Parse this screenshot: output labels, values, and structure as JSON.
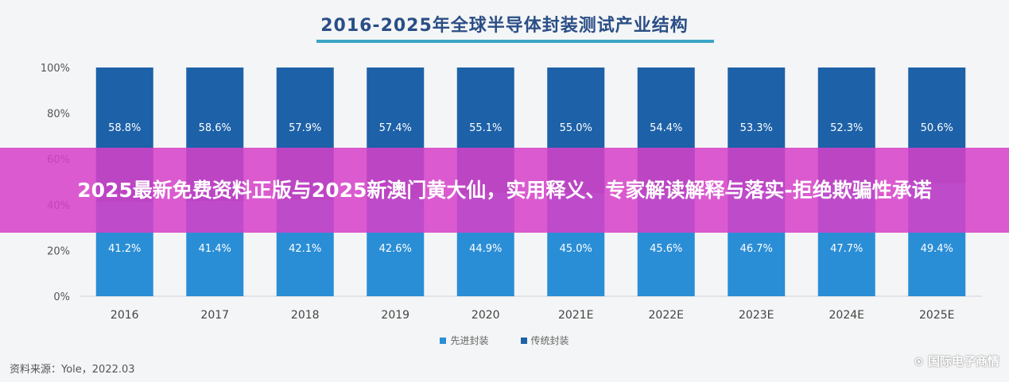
{
  "overlay_headline": "2025最新免费资料正版与2025新澳门黄大仙，实用释义、专家解读解释与落实-拒绝欺骗性承诺",
  "source_note": "资料来源：Yole，2022.03",
  "watermark": "国际电子商情",
  "colors": {
    "advanced": "#2a8ed6",
    "traditional": "#1d61a8",
    "banner": "#d640c8",
    "title": "#2a4e86",
    "underline": "#3aa5c6"
  },
  "chart_data": {
    "type": "bar",
    "stacked": true,
    "percent": true,
    "title": "2016-2025年全球半导体封装测试产业结构",
    "xlabel": "",
    "ylabel": "",
    "ylim": [
      0,
      100
    ],
    "yticks": [
      "0%",
      "20%",
      "40%",
      "60%",
      "80%",
      "100%"
    ],
    "categories": [
      "2016",
      "2017",
      "2018",
      "2019",
      "2020",
      "2021E",
      "2022E",
      "2023E",
      "2024E",
      "2025E"
    ],
    "series": [
      {
        "name": "先进封装",
        "values": [
          41.2,
          41.4,
          42.1,
          42.6,
          44.9,
          45.0,
          45.6,
          46.7,
          47.7,
          49.4
        ],
        "labels": [
          "41.2%",
          "41.4%",
          "42.1%",
          "42.6%",
          "44.9%",
          "45.0%",
          "45.6%",
          "46.7%",
          "47.7%",
          "49.4%"
        ]
      },
      {
        "name": "传统封装",
        "values": [
          58.8,
          58.6,
          57.9,
          57.4,
          55.1,
          55.0,
          54.4,
          53.3,
          52.3,
          50.6
        ],
        "labels": [
          "58.8%",
          "58.6%",
          "57.9%",
          "57.4%",
          "55.1%",
          "55.0%",
          "54.4%",
          "53.3%",
          "52.3%",
          "50.6%"
        ]
      }
    ],
    "legend_position": "bottom",
    "grid": false
  }
}
